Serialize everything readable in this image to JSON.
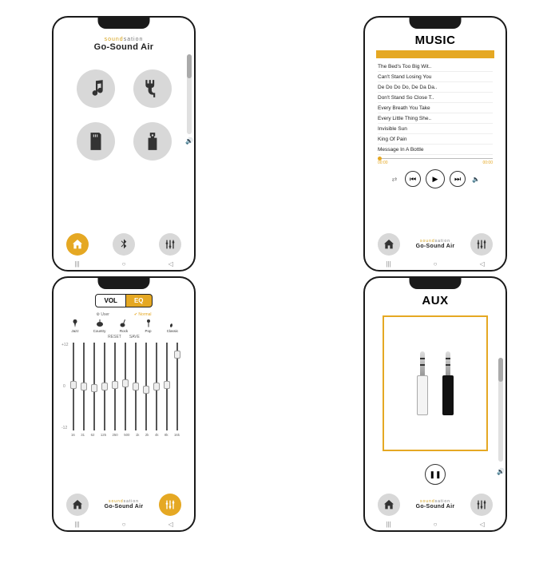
{
  "brand": {
    "top_a": "sound",
    "top_b": "sation",
    "main": "Go-Sound Air"
  },
  "accent": "#e5a823",
  "home": {
    "buttons": [
      "music-icon",
      "cable-icon",
      "sd-icon",
      "usb-icon"
    ],
    "nav": {
      "home": "home-icon",
      "bt": "bluetooth-icon",
      "eq": "sliders-icon"
    }
  },
  "music": {
    "title": "MUSIC",
    "tracks": [
      "The Bed's Too Big Wit..",
      "Can't Stand Losing You",
      "De Do Do Do, De Da Da..",
      "Don't Stand So Close T..",
      "Every Breath You Take",
      "Every Little Thing She..",
      "Invisible Sun",
      "King Of Pain",
      "Message In A Bottle"
    ],
    "time_cur": "00:00",
    "time_tot": "00:00"
  },
  "eq": {
    "tab_vol": "VOL",
    "tab_eq": "EQ",
    "user": "User",
    "normal": "Normal",
    "presets": [
      "Jazz",
      "Country",
      "Rock",
      "Pop",
      "Classic"
    ],
    "reset": "RESET",
    "save": "SAVE",
    "axis_top": "+12",
    "axis_mid": "0",
    "axis_bot": "-12",
    "freqs": [
      "16",
      "31",
      "62",
      "125",
      "250",
      "500",
      "1k",
      "2k",
      "4k",
      "8k",
      "16k"
    ],
    "positions": [
      48,
      50,
      52,
      50,
      48,
      46,
      50,
      54,
      50,
      48,
      10
    ]
  },
  "aux": {
    "title": "AUX"
  }
}
